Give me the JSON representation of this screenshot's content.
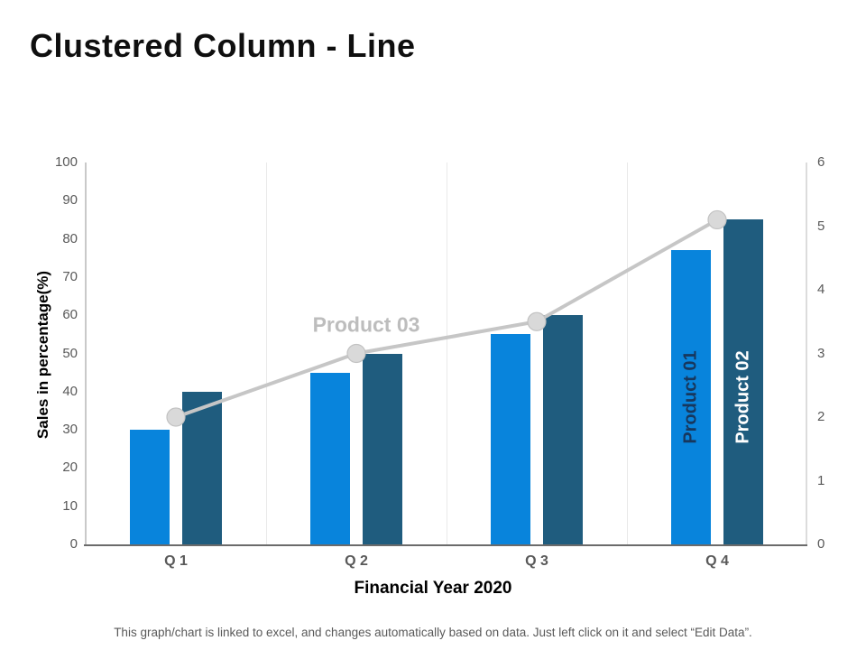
{
  "page": {
    "title": "Clustered Column - Line",
    "footer": "This graph/chart is linked to excel, and changes automatically based on data. Just left click on it and select “Edit Data”."
  },
  "chart_data": {
    "type": "bar",
    "subtype": "clustered-column-with-line-combo",
    "categories": [
      "Q 1",
      "Q 2",
      "Q 3",
      "Q 4"
    ],
    "series": [
      {
        "name": "Product 01",
        "type": "bar",
        "axis": "left",
        "color": "#0884DC",
        "label_color": "#17375D",
        "values": [
          30,
          45,
          55,
          77
        ]
      },
      {
        "name": "Product 02",
        "type": "bar",
        "axis": "left",
        "color": "#1F5C7E",
        "label_color": "#FFFFFF",
        "values": [
          40,
          50,
          60,
          85
        ]
      },
      {
        "name": "Product 03",
        "type": "line",
        "axis": "right",
        "color": "#C6C6C6",
        "marker_fill": "#D9D9D9",
        "marker_stroke": "#C2C2C2",
        "label_color": "#BDBDBD",
        "values": [
          2,
          3,
          3.5,
          5.1
        ]
      }
    ],
    "left_axis": {
      "title": "Sales in percentage(%)",
      "min": 0,
      "max": 100,
      "ticks": [
        0,
        10,
        20,
        30,
        40,
        50,
        60,
        70,
        80,
        90,
        100
      ]
    },
    "right_axis": {
      "min": 0,
      "max": 6,
      "ticks": [
        0,
        1,
        2,
        3,
        4,
        5,
        6
      ]
    },
    "x_axis": {
      "title": "Financial Year 2020"
    },
    "grid": "vertical-category-boundaries-only",
    "legend": "none (series labeled inline on chart)"
  },
  "colors": {
    "bar_product_01": "#0884DC",
    "bar_product_02": "#1F5C7E",
    "line_product_03": "#C6C6C6",
    "tick_text": "#595959",
    "axis_bottom": "#6B6B6B",
    "axis_side": "#C9C9C9",
    "grid": "#E9E9E9"
  }
}
